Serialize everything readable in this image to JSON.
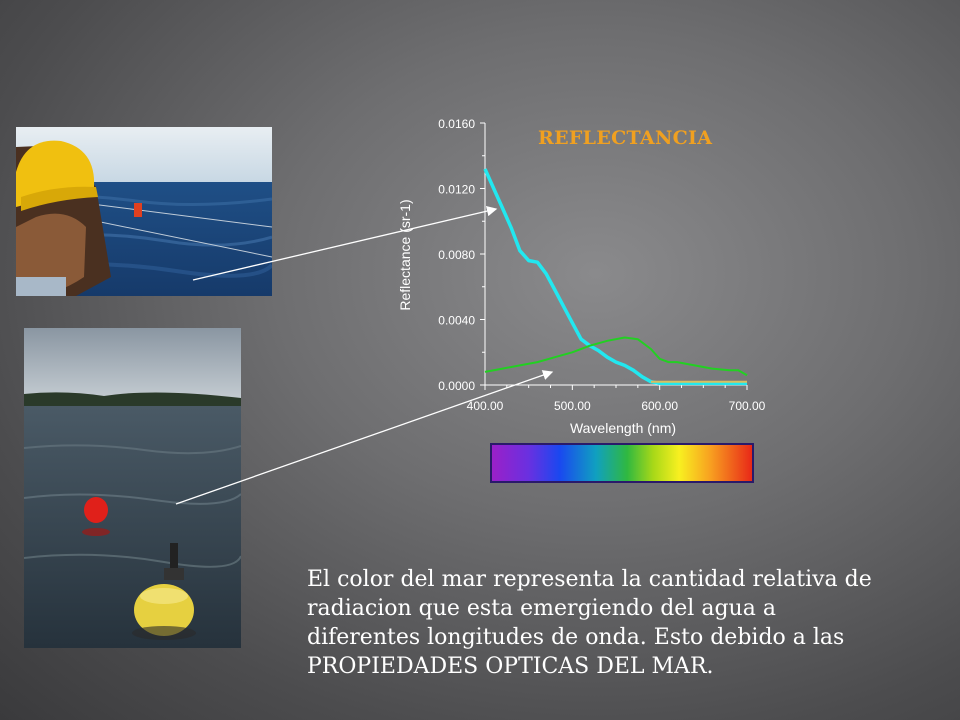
{
  "slide": {
    "chart_title": "REFLECTANCIA",
    "caption": "El color del mar representa la cantidad relativa de\nradiacion que esta emergiendo del agua a\ndiferentes longitudes de onda. Esto debido a las\nPROPIEDADES OPTICAS DEL MAR.",
    "photos": [
      "photo-worker-helmet-sea-buoy",
      "photo-yellow-buoy-red-float"
    ]
  },
  "chart_data": {
    "type": "line",
    "title": "REFLECTANCIA",
    "xlabel": "Wavelength (nm)",
    "ylabel": "Reflectance (sr-1)",
    "xlim": [
      400,
      700
    ],
    "ylim": [
      0,
      0.016
    ],
    "x_ticks": [
      "400.00",
      "500.00",
      "600.00",
      "700.00"
    ],
    "y_ticks": [
      "0.0000",
      "0.0040",
      "0.0080",
      "0.0120",
      "0.0160"
    ],
    "grid": false,
    "series": [
      {
        "color": "#22e8f0",
        "x": [
          400,
          410,
          420,
          430,
          440,
          450,
          460,
          470,
          480,
          490,
          500,
          510,
          520,
          530,
          540,
          550,
          560,
          570,
          580,
          590,
          600,
          620,
          650,
          680,
          700
        ],
        "y": [
          0.0132,
          0.012,
          0.0108,
          0.0096,
          0.0082,
          0.0076,
          0.0075,
          0.0068,
          0.0058,
          0.0048,
          0.0038,
          0.0028,
          0.0024,
          0.0021,
          0.0017,
          0.0014,
          0.0012,
          0.0009,
          0.0005,
          0.0002,
          0.0001,
          0.0001,
          0.0001,
          0.0001,
          0.0001
        ]
      },
      {
        "color": "#22d022",
        "x": [
          400,
          420,
          440,
          460,
          480,
          500,
          520,
          540,
          560,
          575,
          590,
          600,
          610,
          620,
          640,
          660,
          680,
          690,
          700
        ],
        "y": [
          0.0008,
          0.001,
          0.0012,
          0.0014,
          0.0017,
          0.002,
          0.0024,
          0.0027,
          0.0029,
          0.0028,
          0.0022,
          0.0016,
          0.0014,
          0.0014,
          0.0012,
          0.001,
          0.0009,
          0.0009,
          0.0006
        ]
      },
      {
        "color": "#d8c060",
        "x": [
          590,
          620,
          660,
          700
        ],
        "y": [
          0.0002,
          0.0002,
          0.0002,
          0.0002
        ]
      }
    ]
  }
}
